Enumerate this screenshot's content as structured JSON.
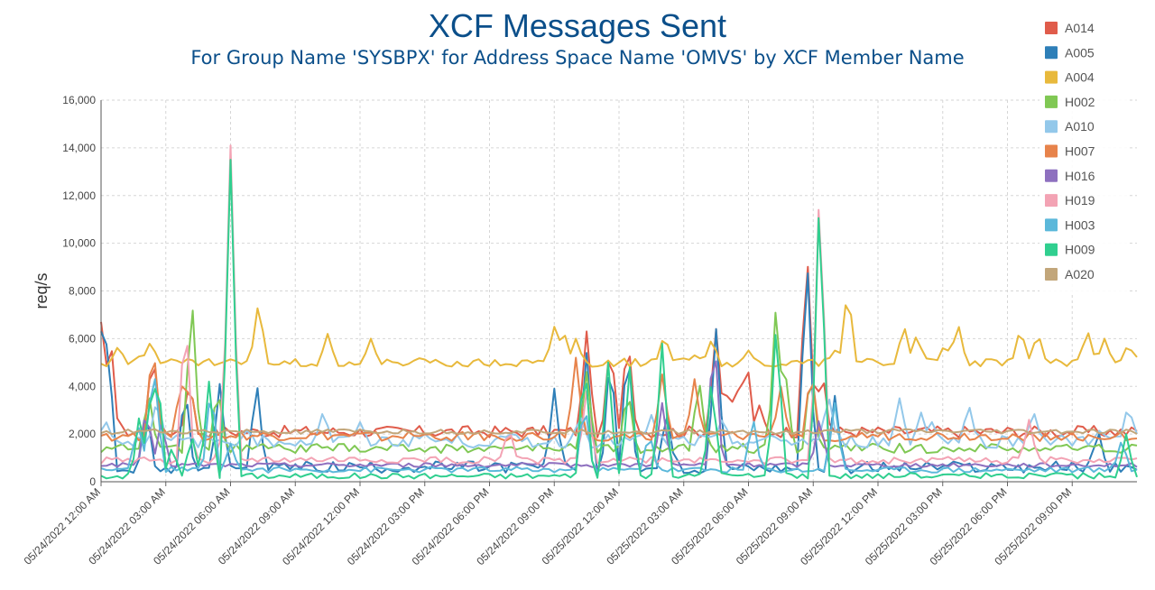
{
  "title": "XCF Messages Sent",
  "subtitle": "For Group Name 'SYSBPX' for Address Space Name 'OMVS' by XCF Member Name",
  "chart_data": {
    "type": "line",
    "ylabel": "req/s",
    "ylim": [
      0,
      16000
    ],
    "yticks": [
      "0",
      "2,000",
      "4,000",
      "6,000",
      "8,000",
      "10,000",
      "12,000",
      "14,000",
      "16,000"
    ],
    "xlim_hours": [
      0,
      48
    ],
    "x_tick_labels": [
      "05/24/2022 12:00 AM",
      "05/24/2022 03:00 AM",
      "05/24/2022 06:00 AM",
      "05/24/2022 09:00 AM",
      "05/24/2022 12:00 PM",
      "05/24/2022 03:00 PM",
      "05/24/2022 06:00 PM",
      "05/24/2022 09:00 PM",
      "05/25/2022 12:00 AM",
      "05/25/2022 03:00 AM",
      "05/25/2022 06:00 AM",
      "05/25/2022 09:00 AM",
      "05/25/2022 12:00 PM",
      "05/25/2022 03:00 PM",
      "05/25/2022 06:00 PM",
      "05/25/2022 09:00 PM"
    ],
    "grid": true,
    "legend_position": "right",
    "series": [
      {
        "name": "A014",
        "color": "#e05c4b",
        "baseline": 2100,
        "noise": 250,
        "spikes": [
          [
            0,
            6700
          ],
          [
            0.4,
            6600
          ],
          [
            2.4,
            5600
          ],
          [
            4.1,
            4300
          ],
          [
            22.5,
            6300
          ],
          [
            23.6,
            6000
          ],
          [
            24.4,
            6300
          ],
          [
            28.5,
            6400
          ],
          [
            29.5,
            3800
          ],
          [
            29.9,
            5400
          ],
          [
            29.1,
            4100
          ],
          [
            32.7,
            10000
          ],
          [
            33.4,
            4800
          ],
          [
            30.5,
            3200
          ]
        ]
      },
      {
        "name": "A005",
        "color": "#2e7fb8",
        "baseline": 600,
        "noise": 250,
        "spikes": [
          [
            0,
            6300
          ],
          [
            0.3,
            6500
          ],
          [
            2.1,
            3100
          ],
          [
            3.9,
            4100
          ],
          [
            5.5,
            4100
          ],
          [
            7.2,
            4400
          ],
          [
            21.0,
            3900
          ],
          [
            22.5,
            5400
          ],
          [
            23.6,
            5600
          ],
          [
            24.4,
            6100
          ],
          [
            26.2,
            3100
          ],
          [
            28.5,
            6400
          ],
          [
            32.7,
            9900
          ],
          [
            34.0,
            3600
          ],
          [
            46.2,
            2200
          ]
        ]
      },
      {
        "name": "A004",
        "color": "#e8b93c",
        "baseline": 5000,
        "noise": 180,
        "spikes": [
          [
            0,
            3100
          ],
          [
            0.5,
            3000
          ],
          [
            0.8,
            5700
          ],
          [
            1.9,
            5400
          ],
          [
            2.3,
            5900
          ],
          [
            7.3,
            7600
          ],
          [
            8.5,
            4300
          ],
          [
            10.5,
            6200
          ],
          [
            12.5,
            6000
          ],
          [
            21.0,
            6500
          ],
          [
            21.4,
            6500
          ],
          [
            22.0,
            6000
          ],
          [
            26.1,
            6200
          ],
          [
            27.5,
            5300
          ],
          [
            28.3,
            6000
          ],
          [
            30.0,
            5500
          ],
          [
            34.0,
            5500
          ],
          [
            34.6,
            8200
          ],
          [
            35.6,
            5200
          ],
          [
            36.2,
            4700
          ],
          [
            37.2,
            6600
          ],
          [
            37.8,
            6200
          ],
          [
            39.1,
            5800
          ],
          [
            39.7,
            6700
          ],
          [
            42.6,
            6500
          ],
          [
            43.4,
            6300
          ],
          [
            45.7,
            6400
          ],
          [
            46.5,
            6000
          ],
          [
            47.6,
            5800
          ],
          [
            47.9,
            5300
          ]
        ]
      },
      {
        "name": "H002",
        "color": "#80c854",
        "baseline": 1400,
        "noise": 200,
        "spikes": [
          [
            2.2,
            3800
          ],
          [
            4.2,
            8000
          ],
          [
            5.4,
            4100
          ],
          [
            22.5,
            4600
          ],
          [
            24.4,
            4000
          ],
          [
            27.7,
            4400
          ],
          [
            31.3,
            7900
          ],
          [
            31.7,
            4700
          ],
          [
            32.9,
            5000
          ]
        ]
      },
      {
        "name": "A010",
        "color": "#93c8ea",
        "baseline": 1700,
        "noise": 280,
        "spikes": [
          [
            0.2,
            2600
          ],
          [
            2.6,
            3600
          ],
          [
            6.8,
            2200
          ],
          [
            10.3,
            3000
          ],
          [
            12.0,
            2500
          ],
          [
            15.0,
            2000
          ],
          [
            19.1,
            2100
          ],
          [
            22.2,
            2800
          ],
          [
            25.5,
            2800
          ],
          [
            28.8,
            2700
          ],
          [
            33.7,
            3700
          ],
          [
            37.0,
            3500
          ],
          [
            38.0,
            2900
          ],
          [
            38.5,
            2500
          ],
          [
            40.2,
            3300
          ],
          [
            43.2,
            3000
          ],
          [
            46.3,
            2200
          ],
          [
            47.6,
            3300
          ],
          [
            48,
            2000
          ]
        ]
      },
      {
        "name": "H007",
        "color": "#e7834b",
        "baseline": 1900,
        "noise": 200,
        "spikes": [
          [
            2.4,
            6000
          ],
          [
            3.7,
            4300
          ],
          [
            4.1,
            4400
          ],
          [
            22.0,
            5200
          ],
          [
            26.0,
            4500
          ],
          [
            27.5,
            4300
          ],
          [
            31.5,
            4000
          ],
          [
            32.9,
            4800
          ]
        ]
      },
      {
        "name": "H016",
        "color": "#8e70bf",
        "baseline": 700,
        "noise": 90,
        "spikes": [
          [
            2.1,
            3200
          ],
          [
            2.8,
            2600
          ],
          [
            26.0,
            3300
          ],
          [
            28.4,
            6500
          ],
          [
            33.3,
            2800
          ]
        ]
      },
      {
        "name": "H019",
        "color": "#f3a3b4",
        "baseline": 900,
        "noise": 150,
        "spikes": [
          [
            3.9,
            7300
          ],
          [
            5.8,
            3900
          ],
          [
            6.0,
            14100
          ],
          [
            18.9,
            2300
          ],
          [
            22.5,
            3800
          ],
          [
            33.3,
            12900
          ],
          [
            43.0,
            2600
          ],
          [
            44.5,
            1000
          ]
        ]
      },
      {
        "name": "H003",
        "color": "#5bb8da",
        "baseline": 500,
        "noise": 120,
        "spikes": [
          [
            1.7,
            2500
          ],
          [
            2.3,
            3700
          ],
          [
            2.5,
            4300
          ],
          [
            5.1,
            4200
          ],
          [
            6.0,
            1600
          ],
          [
            22.4,
            3500
          ],
          [
            25.4,
            2100
          ],
          [
            30.2,
            2800
          ],
          [
            34.0,
            3300
          ],
          [
            47.3,
            1800
          ]
        ]
      },
      {
        "name": "H009",
        "color": "#30cf8f",
        "baseline": 250,
        "noise": 120,
        "spikes": [
          [
            1.8,
            3000
          ],
          [
            2.4,
            5000
          ],
          [
            2.6,
            5100
          ],
          [
            3.3,
            1500
          ],
          [
            4.2,
            2000
          ],
          [
            5.0,
            4200
          ],
          [
            6.0,
            13500
          ],
          [
            22.4,
            5400
          ],
          [
            23.5,
            5000
          ],
          [
            24.5,
            4800
          ],
          [
            26.0,
            5800
          ],
          [
            28.3,
            4500
          ],
          [
            31.3,
            7000
          ],
          [
            33.3,
            12600
          ],
          [
            47.5,
            2000
          ]
        ]
      },
      {
        "name": "A020",
        "color": "#c2a67a",
        "baseline": 2100,
        "noise": 100,
        "spikes": []
      }
    ]
  }
}
